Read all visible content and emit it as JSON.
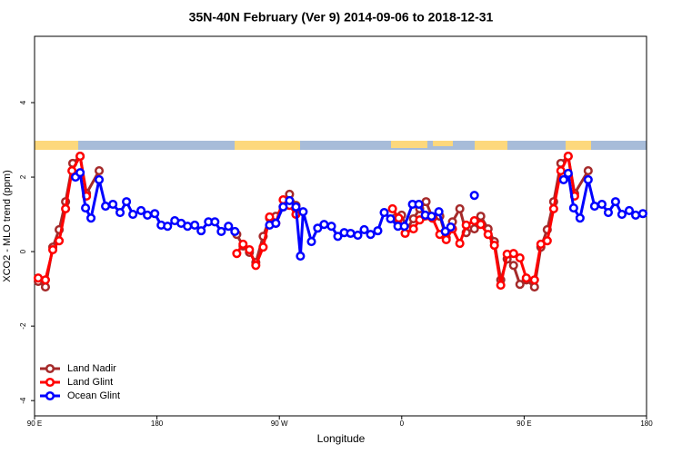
{
  "chart_data": {
    "type": "line",
    "title": "35N-40N February (Ver 9)   2014-09-06 to 2018-12-31",
    "x_label": "Longitude",
    "y_label": "XCO2 - MLO trend (ppm)",
    "xlim": [
      90,
      540
    ],
    "ylim": [
      -4.41,
      5.78
    ],
    "xticks": [
      {
        "value": 90,
        "label": "90 E"
      },
      180,
      {
        "value": 270,
        "label": "90 W"
      },
      {
        "value": 360,
        "label": "0"
      },
      {
        "value": 450,
        "label": "90 E"
      },
      {
        "value": 540,
        "label": "180"
      }
    ],
    "yticks": [
      -4,
      -2,
      0,
      2,
      4
    ],
    "legend": "bottomleft",
    "series": [
      {
        "name": "Land Nadir",
        "color": "#a52a2a",
        "x": [
          92.7,
          98.0,
          103.4,
          108.1,
          112.8,
          118.1,
          123.5,
          128.2,
          137.5,
          190,
          238.7,
          243.3,
          248.0,
          252.7,
          258.1,
          262.8,
          267.4,
          272.8,
          277.5,
          282.2,
          320,
          355.2,
          359.9,
          363.9,
          368.6,
          373.2,
          377.9,
          382.6,
          388.0,
          392.7,
          397.3,
          402.7,
          407.4,
          413.4,
          418.1,
          423.5,
          428.1,
          432.8,
          437.5,
          442.2,
          446.9,
          451.6,
          457.6,
          462.3,
          467.0,
          471.7,
          477.0,
          482.4,
          487.1,
          497.1
        ],
        "values": [
          -0.8,
          -0.95,
          0.12,
          0.59,
          1.34,
          2.37,
          2.56,
          1.56,
          2.17,
          null,
          0.46,
          0.15,
          -0.02,
          -0.29,
          0.41,
          0.9,
          0.95,
          1.2,
          1.54,
          1.24,
          null,
          0.9,
          0.98,
          0.61,
          0.88,
          1.15,
          1.34,
          0.9,
          0.95,
          0.37,
          0.8,
          1.15,
          0.51,
          0.61,
          0.95,
          0.61,
          0.27,
          -0.76,
          -0.2,
          -0.37,
          -0.88,
          -0.76,
          -0.95,
          0.12,
          0.59,
          1.34,
          2.37,
          2.56,
          1.56,
          2.17
        ]
      },
      {
        "name": "Land Glint",
        "color": "#ff0000",
        "x": [
          92.7,
          98.0,
          103.4,
          108.1,
          112.8,
          117.5,
          123.5,
          128.2,
          190,
          238.7,
          243.3,
          248.0,
          252.7,
          258.1,
          262.8,
          267.4,
          272.8,
          277.5,
          282.2,
          320,
          353.2,
          357.8,
          362.5,
          368.6,
          373.2,
          382.6,
          388.0,
          392.7,
          397.3,
          402.7,
          407.4,
          413.4,
          418.1,
          423.5,
          428.1,
          432.8,
          437.5,
          442.2,
          446.9,
          451.6,
          457.6,
          462.3,
          467.0,
          471.7,
          477.0,
          482.4,
          487.1
        ],
        "values": [
          -0.71,
          -0.76,
          0.05,
          0.29,
          1.15,
          2.17,
          2.56,
          1.49,
          null,
          -0.05,
          0.2,
          0.05,
          -0.37,
          0.12,
          0.93,
          0.76,
          1.39,
          1.24,
          1.0,
          null,
          1.15,
          0.9,
          0.49,
          0.61,
          0.85,
          0.9,
          0.46,
          0.32,
          0.61,
          0.22,
          0.71,
          0.83,
          0.73,
          0.46,
          0.17,
          -0.9,
          -0.07,
          -0.05,
          -0.17,
          -0.71,
          -0.76,
          0.2,
          0.29,
          1.15,
          2.17,
          2.56,
          1.49
        ]
      },
      {
        "name": "Ocean Glint",
        "color": "#0000ff",
        "x": [
          120.1,
          123.5,
          127.5,
          131.5,
          137.5,
          142.2,
          147.6,
          152.9,
          157.6,
          162.3,
          168.3,
          173.0,
          178.4,
          183.1,
          187.8,
          193.1,
          197.8,
          202.5,
          207.8,
          212.5,
          217.9,
          222.6,
          227.3,
          232.6,
          237.3,
          250,
          262.8,
          267.4,
          272.8,
          277.5,
          282.2,
          285.5,
          287.5,
          293.6,
          298.2,
          302.9,
          308.3,
          313.0,
          317.7,
          322.4,
          327.7,
          332.4,
          337.1,
          342.4,
          347.1,
          351.8,
          357.2,
          361.9,
          367.9,
          372.6,
          377.3,
          381.9,
          387.3,
          392.0,
          396.0,
          405,
          413.4,
          450,
          479.0,
          482.4,
          486.4,
          491.1,
          497.1,
          501.8,
          507.2,
          511.9,
          517.2,
          521.9,
          527.3,
          532.0,
          537.3
        ],
        "values": [
          2.0,
          2.12,
          1.17,
          0.9,
          1.93,
          1.22,
          1.27,
          1.05,
          1.34,
          1.0,
          1.1,
          0.98,
          1.02,
          0.71,
          0.68,
          0.83,
          0.76,
          0.68,
          0.71,
          0.56,
          0.8,
          0.8,
          0.54,
          0.68,
          0.54,
          null,
          0.71,
          0.76,
          1.2,
          1.37,
          1.2,
          -0.12,
          1.07,
          0.27,
          0.63,
          0.73,
          0.68,
          0.41,
          0.51,
          0.49,
          0.44,
          0.59,
          0.46,
          0.56,
          1.05,
          0.88,
          0.68,
          0.68,
          1.27,
          1.27,
          0.98,
          0.95,
          1.07,
          0.54,
          0.66,
          null,
          1.51,
          null,
          1.93,
          2.1,
          1.17,
          0.9,
          1.93,
          1.22,
          1.27,
          1.05,
          1.34,
          1.0,
          1.1,
          0.98,
          1.02
        ]
      }
    ]
  }
}
